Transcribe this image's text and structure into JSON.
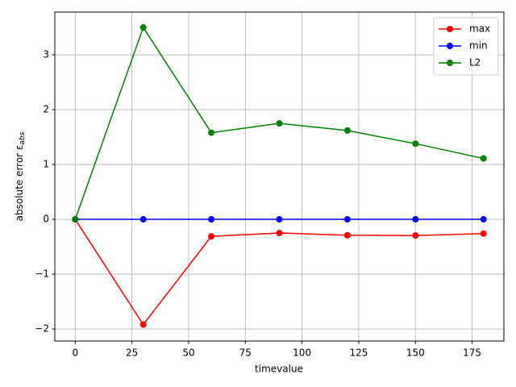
{
  "chart_data": {
    "type": "line",
    "x": [
      0,
      30,
      60,
      90,
      120,
      150,
      180
    ],
    "series": [
      {
        "name": "max",
        "color": "#ff0000",
        "values": [
          0,
          -1.92,
          -0.31,
          -0.25,
          -0.29,
          -0.295,
          -0.26
        ]
      },
      {
        "name": "min",
        "color": "#0000ff",
        "values": [
          0,
          0,
          0,
          0,
          0,
          0,
          0
        ]
      },
      {
        "name": "L2",
        "color": "#008000",
        "values": [
          0,
          3.5,
          1.58,
          1.75,
          1.62,
          1.38,
          1.11
        ]
      }
    ],
    "xlabel": "timevalue",
    "ylabel": {
      "text": "absolute error ε",
      "subscript": "abs"
    },
    "xlim": [
      -9,
      189
    ],
    "ylim": [
      -2.22,
      3.78
    ],
    "xticks": [
      0,
      25,
      50,
      75,
      100,
      125,
      150,
      175
    ],
    "yticks": [
      {
        "value": -2,
        "label": "−2"
      },
      {
        "value": -1,
        "label": "−1"
      },
      0,
      1,
      2,
      3
    ],
    "grid": true,
    "legend": "upper right"
  }
}
